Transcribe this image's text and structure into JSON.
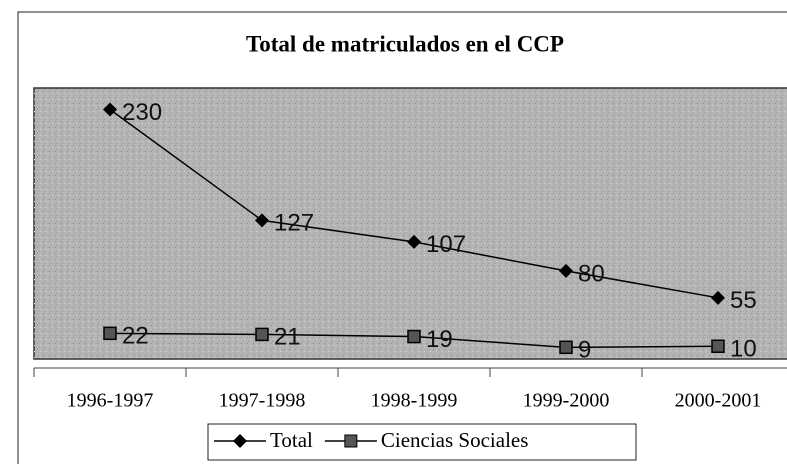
{
  "chart_data": {
    "type": "line",
    "title": "Total de matriculados en el CCP",
    "categories": [
      "1996-1997",
      "1997-1998",
      "1998-1999",
      "1999-2000",
      "2000-2001"
    ],
    "series": [
      {
        "name": "Total",
        "color": "#000000",
        "marker": "diamond",
        "values": [
          230,
          127,
          107,
          80,
          55
        ]
      },
      {
        "name": "Ciencias Sociales",
        "color": "#000000",
        "marker": "square",
        "values": [
          22,
          21,
          19,
          9,
          10
        ]
      }
    ],
    "ylim": [
      0,
      250
    ],
    "plot_background": "#b4b4b4",
    "legend": "bottom"
  }
}
